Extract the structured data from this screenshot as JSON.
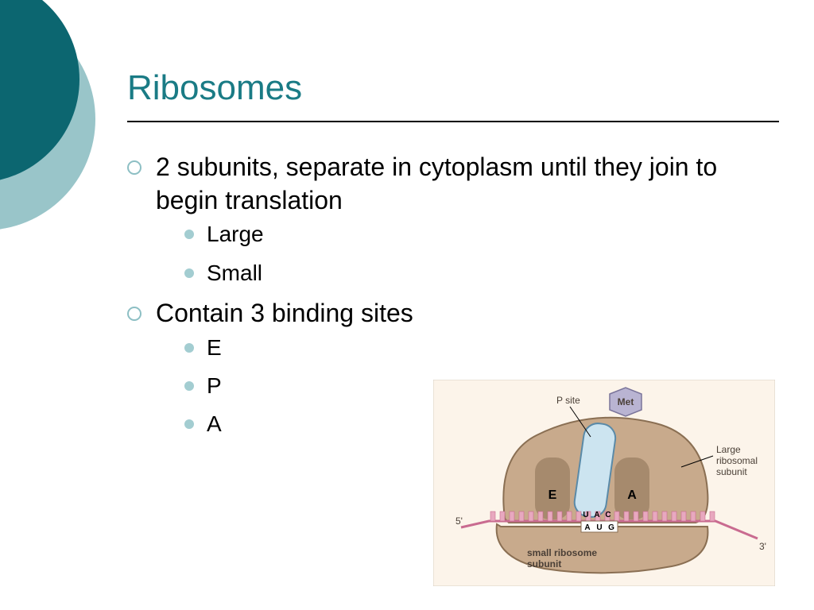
{
  "colors": {
    "teal_dark": "#0c6670",
    "teal_light": "#99c5c9",
    "title": "#1a7b85",
    "bullet_ring": "#8dbfc4",
    "bullet_dot": "#a3cdd1",
    "diagram_bg": "#fcf4ea",
    "ribo_fill": "#c8aa8c",
    "ribo_stroke": "#8a6f53",
    "trna_fill": "#cce4f0",
    "trna_stroke": "#5a8aa8",
    "mrna_pink": "#e8a8bf",
    "mrna_stroke": "#c96b90",
    "met_fill": "#b9b4d2",
    "label_text": "#4a3f36"
  },
  "title": "Ribosomes",
  "bullets": [
    {
      "level": 1,
      "text": "2 subunits, separate in cytoplasm until they join to begin translation"
    },
    {
      "level": 2,
      "text": "Large"
    },
    {
      "level": 2,
      "text": "Small"
    },
    {
      "level": 1,
      "text": "Contain 3 binding sites"
    },
    {
      "level": 2,
      "text": "E"
    },
    {
      "level": 2,
      "text": "P"
    },
    {
      "level": 2,
      "text": "A"
    }
  ],
  "diagram": {
    "labels": {
      "p_site": "P site",
      "met": "Met",
      "large_subunit": "Large\nribosomal\nsubunit",
      "small_subunit": "small ribosome\nsubunit",
      "five_prime": "5'",
      "three_prime": "3'",
      "site_E": "E",
      "site_A": "A",
      "anticodon": [
        "U",
        "A",
        "C"
      ],
      "codon": [
        "A",
        "U",
        "G"
      ]
    },
    "font_size_label": 12,
    "font_size_site": 16,
    "font_size_base": 10
  }
}
